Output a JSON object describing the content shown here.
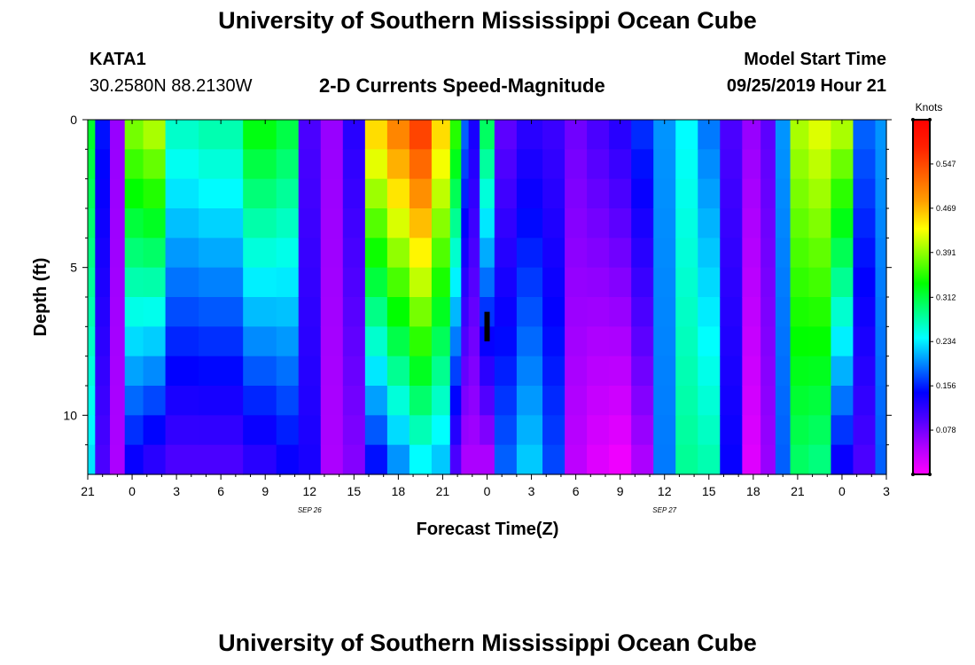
{
  "header": {
    "title": "University of Southern Mississippi Ocean Cube",
    "station_id": "KATA1",
    "station_coords": "30.2580N 88.2130W",
    "chart_title": "2-D Currents Speed-Magnitude",
    "model_start_label": "Model Start Time",
    "model_start_value": "09/25/2019 Hour 21"
  },
  "footer": {
    "title": "University of Southern Mississippi Ocean Cube"
  },
  "chart_data": {
    "type": "heatmap",
    "title": "2-D Currents Speed-Magnitude",
    "xlabel": "Forecast Time(Z)",
    "ylabel": "Depth (ft)",
    "x_tick_labels": [
      "21",
      "0",
      "3",
      "6",
      "9",
      "12",
      "15",
      "18",
      "21",
      "0",
      "3",
      "6",
      "9",
      "12",
      "15",
      "18",
      "21",
      "0",
      "3"
    ],
    "x_tick_hours": [
      0,
      3,
      6,
      9,
      12,
      15,
      18,
      21,
      24,
      27,
      30,
      33,
      36,
      39,
      42,
      45,
      48,
      51,
      54
    ],
    "date_labels": [
      {
        "text": "SEP 26",
        "hour": 15
      },
      {
        "text": "SEP 27",
        "hour": 39
      }
    ],
    "y_tick_labels": [
      "0",
      "5",
      "10"
    ],
    "y_tick_values": [
      0,
      5,
      10
    ],
    "ylim": [
      0,
      12
    ],
    "xlim_hours": [
      0,
      54
    ],
    "colorbar": {
      "label": "Knots",
      "tick_labels": [
        "0.547",
        "0.469",
        "0.391",
        "0.312",
        "0.234",
        "0.156",
        "0.078"
      ],
      "tick_values": [
        0.547,
        0.469,
        0.391,
        0.312,
        0.234,
        0.156,
        0.078
      ],
      "range": [
        0,
        0.625
      ],
      "colors": [
        "#ff00ff",
        "#b000ff",
        "#5000ff",
        "#0000ff",
        "#0080ff",
        "#00ffff",
        "#00ff80",
        "#00ff00",
        "#80ff00",
        "#ffff00",
        "#ffa000",
        "#ff6000",
        "#ff2000",
        "#ff0000"
      ]
    },
    "time_key_hours": [
      0,
      1,
      2,
      3,
      4.5,
      6,
      9,
      12,
      13.5,
      15,
      16.5,
      18,
      19.5,
      21,
      22.5,
      24,
      25,
      25.5,
      26,
      27,
      28,
      30,
      31.5,
      33,
      34.5,
      36,
      37.5,
      39,
      40.5,
      42,
      43.5,
      45,
      46,
      47,
      48,
      49.5,
      51,
      52.5,
      54
    ],
    "depth_rows": [
      0.5,
      1.5,
      2.5,
      3.5,
      4.5,
      5.5,
      6.5,
      7.5,
      8.5,
      9.5,
      10.5,
      11.5
    ],
    "surface_profile": [
      0.32,
      0.15,
      0.06,
      0.38,
      0.4,
      0.26,
      0.27,
      0.33,
      0.31,
      0.1,
      0.06,
      0.12,
      0.45,
      0.5,
      0.55,
      0.45,
      0.35,
      0.18,
      0.13,
      0.3,
      0.09,
      0.12,
      0.11,
      0.08,
      0.1,
      0.12,
      0.16,
      0.2,
      0.24,
      0.19,
      0.1,
      0.06,
      0.09,
      0.2,
      0.4,
      0.42,
      0.4,
      0.18,
      0.2
    ],
    "bottom_profile": [
      0.23,
      0.1,
      0.05,
      0.14,
      0.12,
      0.1,
      0.1,
      0.12,
      0.14,
      0.13,
      0.05,
      0.07,
      0.15,
      0.2,
      0.24,
      0.22,
      0.1,
      0.05,
      0.05,
      0.05,
      0.18,
      0.22,
      0.17,
      0.04,
      0.02,
      0.01,
      0.05,
      0.19,
      0.28,
      0.27,
      0.14,
      0.02,
      0.06,
      0.18,
      0.3,
      0.29,
      0.14,
      0.1,
      0.18
    ],
    "min_marker": {
      "hour": 27,
      "depth_range": [
        6.5,
        7.5
      ],
      "value": 0.0
    }
  }
}
